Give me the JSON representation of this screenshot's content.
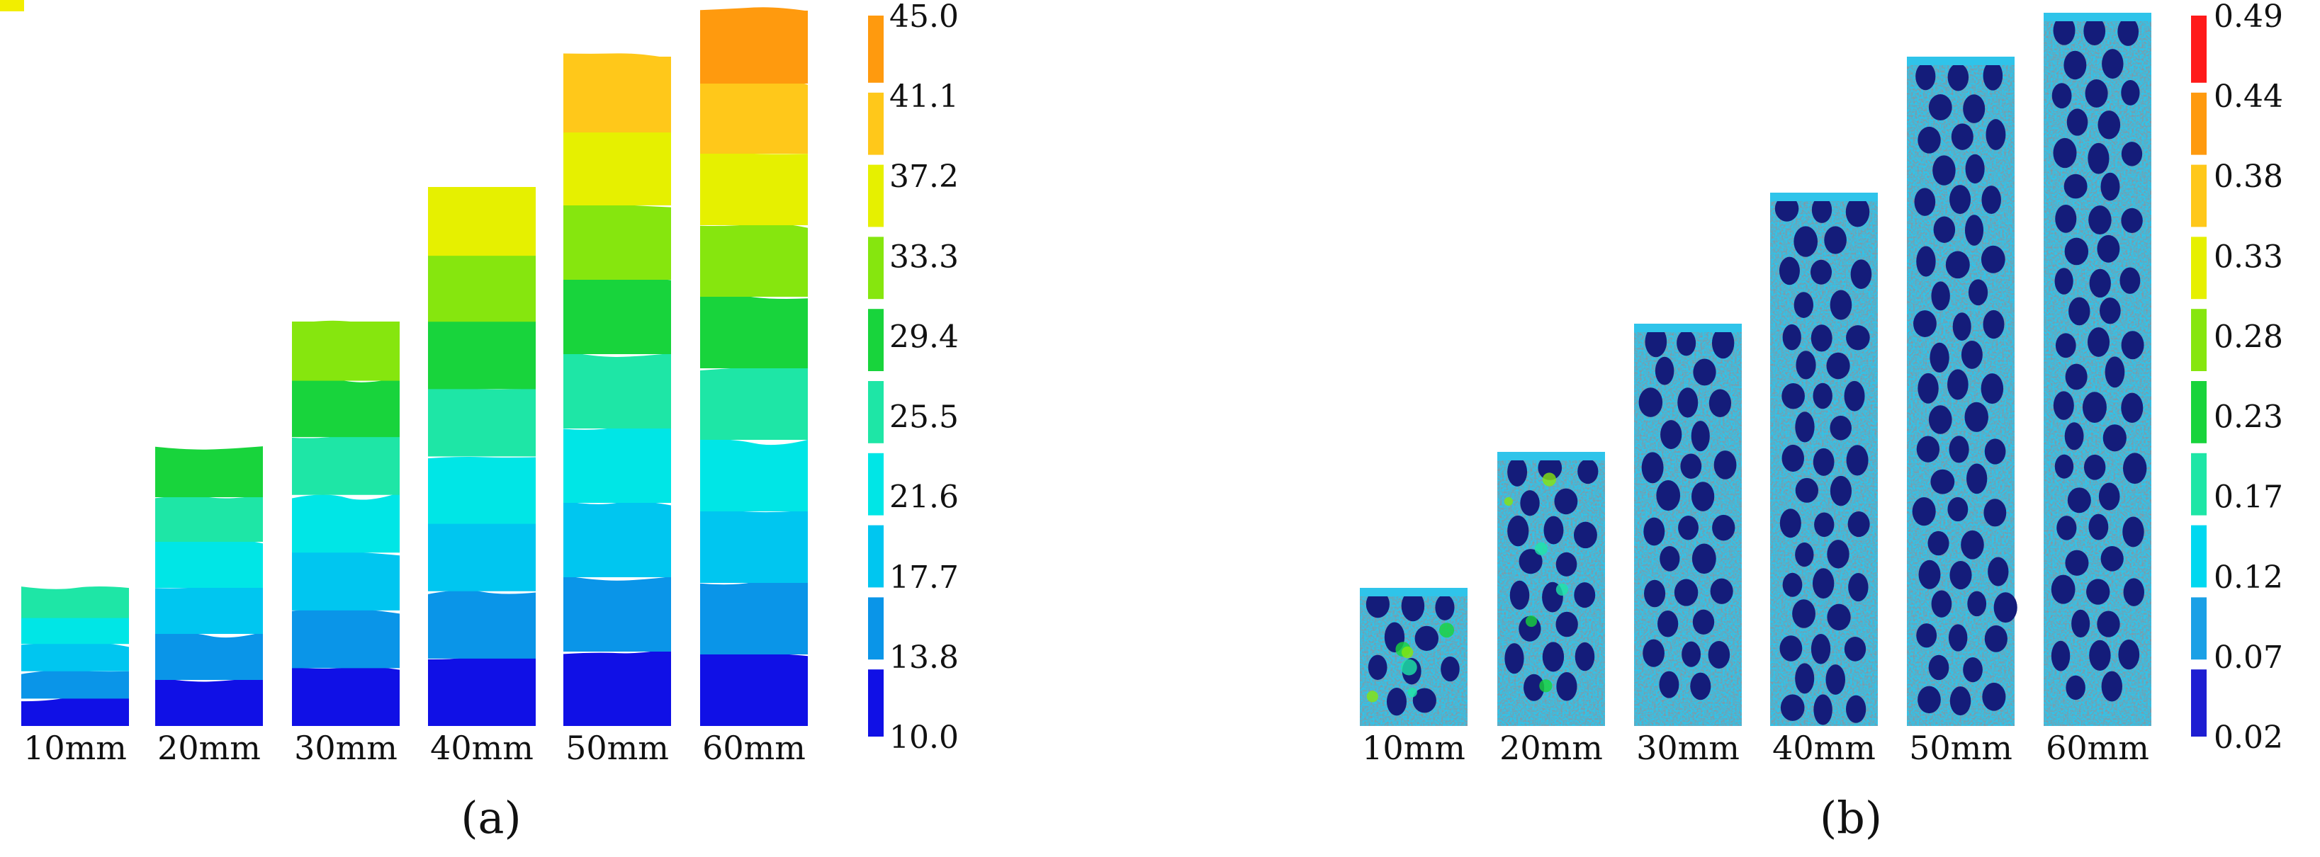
{
  "colors": {
    "a_bands": [
      "#1010e6",
      "#0a95e8",
      "#00c6f0",
      "#00e6e6",
      "#1ee6a6",
      "#18d43c",
      "#86e60e",
      "#e6f000",
      "#ffc81a",
      "#ff9a0e",
      "#ff1a1a"
    ],
    "b_bands": [
      "#1e1ed2",
      "#1aa0e6",
      "#00d8f0",
      "#1ee6a6",
      "#18d43c",
      "#86e60e",
      "#e6f000",
      "#ff9a0e",
      "#ff1a1a"
    ],
    "b_base": "#2fc4ea",
    "b_blob": "#141c7a",
    "corner_mark": "#f2ee00"
  },
  "panel_a": {
    "label": "(a)",
    "columns": [
      "10mm",
      "20mm",
      "30mm",
      "40mm",
      "50mm",
      "60mm"
    ],
    "colorbar_ticks": [
      "45.0",
      "41.1",
      "37.2",
      "33.3",
      "29.4",
      "25.5",
      "21.6",
      "17.7",
      "13.8",
      "10.0"
    ]
  },
  "panel_b": {
    "label": "(b)",
    "columns": [
      "10mm",
      "20mm",
      "30mm",
      "40mm",
      "50mm",
      "60mm"
    ],
    "colorbar_ticks": [
      "0.49",
      "0.44",
      "0.38",
      "0.33",
      "0.28",
      "0.23",
      "0.17",
      "0.12",
      "0.07",
      "0.02"
    ]
  }
}
